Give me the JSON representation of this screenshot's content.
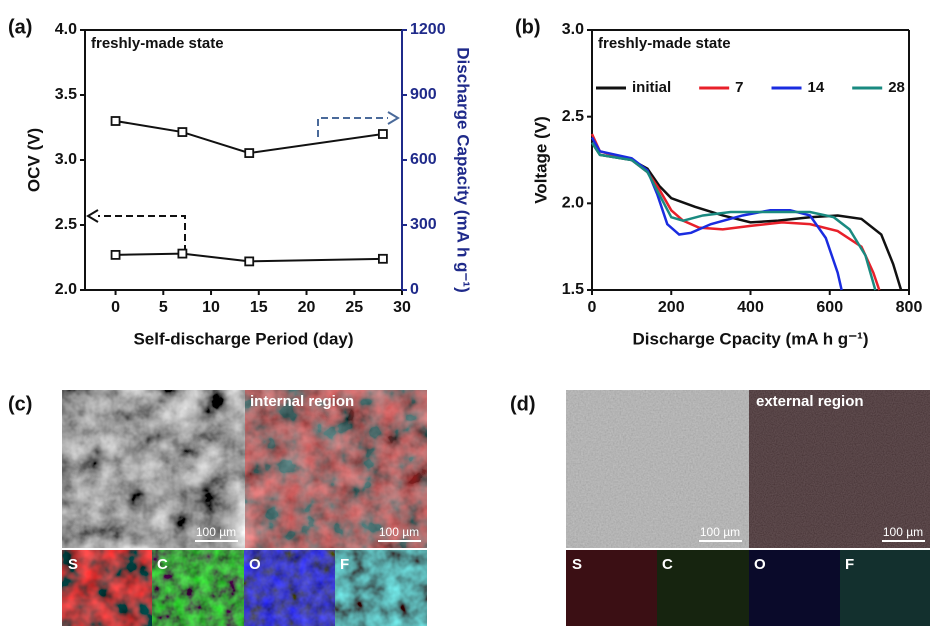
{
  "chart_data": [
    {
      "type": "line",
      "panel_label": "(a)",
      "annotation": "freshly-made state",
      "xlabel": "Self-discharge Period (day)",
      "ylabel": "OCV (V)",
      "y2label": "Discharge Capacity (mA h g⁻¹)",
      "y2_color": "#1f2a8a",
      "marker": "square",
      "x": [
        0,
        7,
        14,
        28
      ],
      "series": [
        {
          "color": "#111111",
          "values": [
            2.27,
            2.28,
            2.22,
            2.24
          ]
        },
        {
          "color": "#111111",
          "axis": "y2",
          "values": [
            780,
            729,
            632,
            720
          ]
        }
      ],
      "xlim": [
        -3.2,
        30
      ],
      "xticks": [
        0,
        5,
        10,
        15,
        20,
        25,
        30
      ],
      "ylim": [
        2,
        4
      ],
      "yticks": [
        {
          "value": 2,
          "label": "2.0"
        },
        2.5,
        {
          "value": 3,
          "label": "3.0"
        },
        3.5,
        {
          "value": 4,
          "label": "4.0"
        }
      ],
      "y2lim": [
        0,
        1200
      ],
      "y2ticks": [
        0,
        300,
        600,
        900,
        1200
      ]
    },
    {
      "type": "line",
      "panel_label": "(b)",
      "annotation": "freshly-made state",
      "xlabel": "Discharge Cpacity (mA h g⁻¹)",
      "ylabel": "Voltage (V)",
      "legend": "top-left",
      "series": [
        {
          "name": "initial",
          "color": "#111111",
          "x": [
            0,
            20,
            100,
            140,
            170,
            200,
            260,
            330,
            400,
            470,
            550,
            620,
            680,
            730,
            760,
            780
          ],
          "values": [
            2.35,
            2.28,
            2.25,
            2.2,
            2.1,
            2.03,
            1.98,
            1.93,
            1.89,
            1.9,
            1.92,
            1.93,
            1.91,
            1.82,
            1.65,
            1.5
          ]
        },
        {
          "name": "7",
          "color": "#e8202a",
          "x": [
            0,
            20,
            100,
            140,
            170,
            200,
            230,
            270,
            330,
            400,
            480,
            550,
            620,
            680,
            710,
            725
          ],
          "values": [
            2.4,
            2.3,
            2.25,
            2.18,
            2.08,
            1.96,
            1.9,
            1.86,
            1.85,
            1.87,
            1.89,
            1.88,
            1.84,
            1.75,
            1.6,
            1.5
          ]
        },
        {
          "name": "14",
          "color": "#1a2ce0",
          "x": [
            0,
            20,
            100,
            140,
            165,
            190,
            220,
            250,
            300,
            380,
            450,
            500,
            550,
            590,
            620,
            630
          ],
          "values": [
            2.38,
            2.3,
            2.26,
            2.19,
            2.05,
            1.88,
            1.82,
            1.83,
            1.88,
            1.93,
            1.96,
            1.96,
            1.93,
            1.8,
            1.6,
            1.5
          ]
        },
        {
          "name": "28",
          "color": "#1a8a80",
          "x": [
            0,
            20,
            100,
            140,
            170,
            200,
            230,
            280,
            350,
            450,
            550,
            610,
            650,
            690,
            715
          ],
          "values": [
            2.35,
            2.28,
            2.25,
            2.18,
            2.05,
            1.92,
            1.9,
            1.93,
            1.95,
            1.95,
            1.95,
            1.92,
            1.85,
            1.7,
            1.5
          ]
        }
      ],
      "xlim": [
        0,
        800
      ],
      "xticks": [
        0,
        200,
        400,
        600,
        800
      ],
      "ylim": [
        1.5,
        3
      ],
      "yticks": [
        1.5,
        {
          "value": 2,
          "label": "2.0"
        },
        2.5,
        {
          "value": 3,
          "label": "3.0"
        }
      ]
    }
  ],
  "images": [
    {
      "label": "(c)",
      "region": "internal region",
      "scale_bars": [
        "100 µm",
        "100 µm"
      ],
      "elements": [
        "S",
        "C",
        "O",
        "F"
      ]
    },
    {
      "label": "(d)",
      "region": "external region",
      "scale_bars": [
        "100 µm",
        "100 µm"
      ],
      "elements": [
        "S",
        "C",
        "O",
        "F"
      ]
    }
  ]
}
